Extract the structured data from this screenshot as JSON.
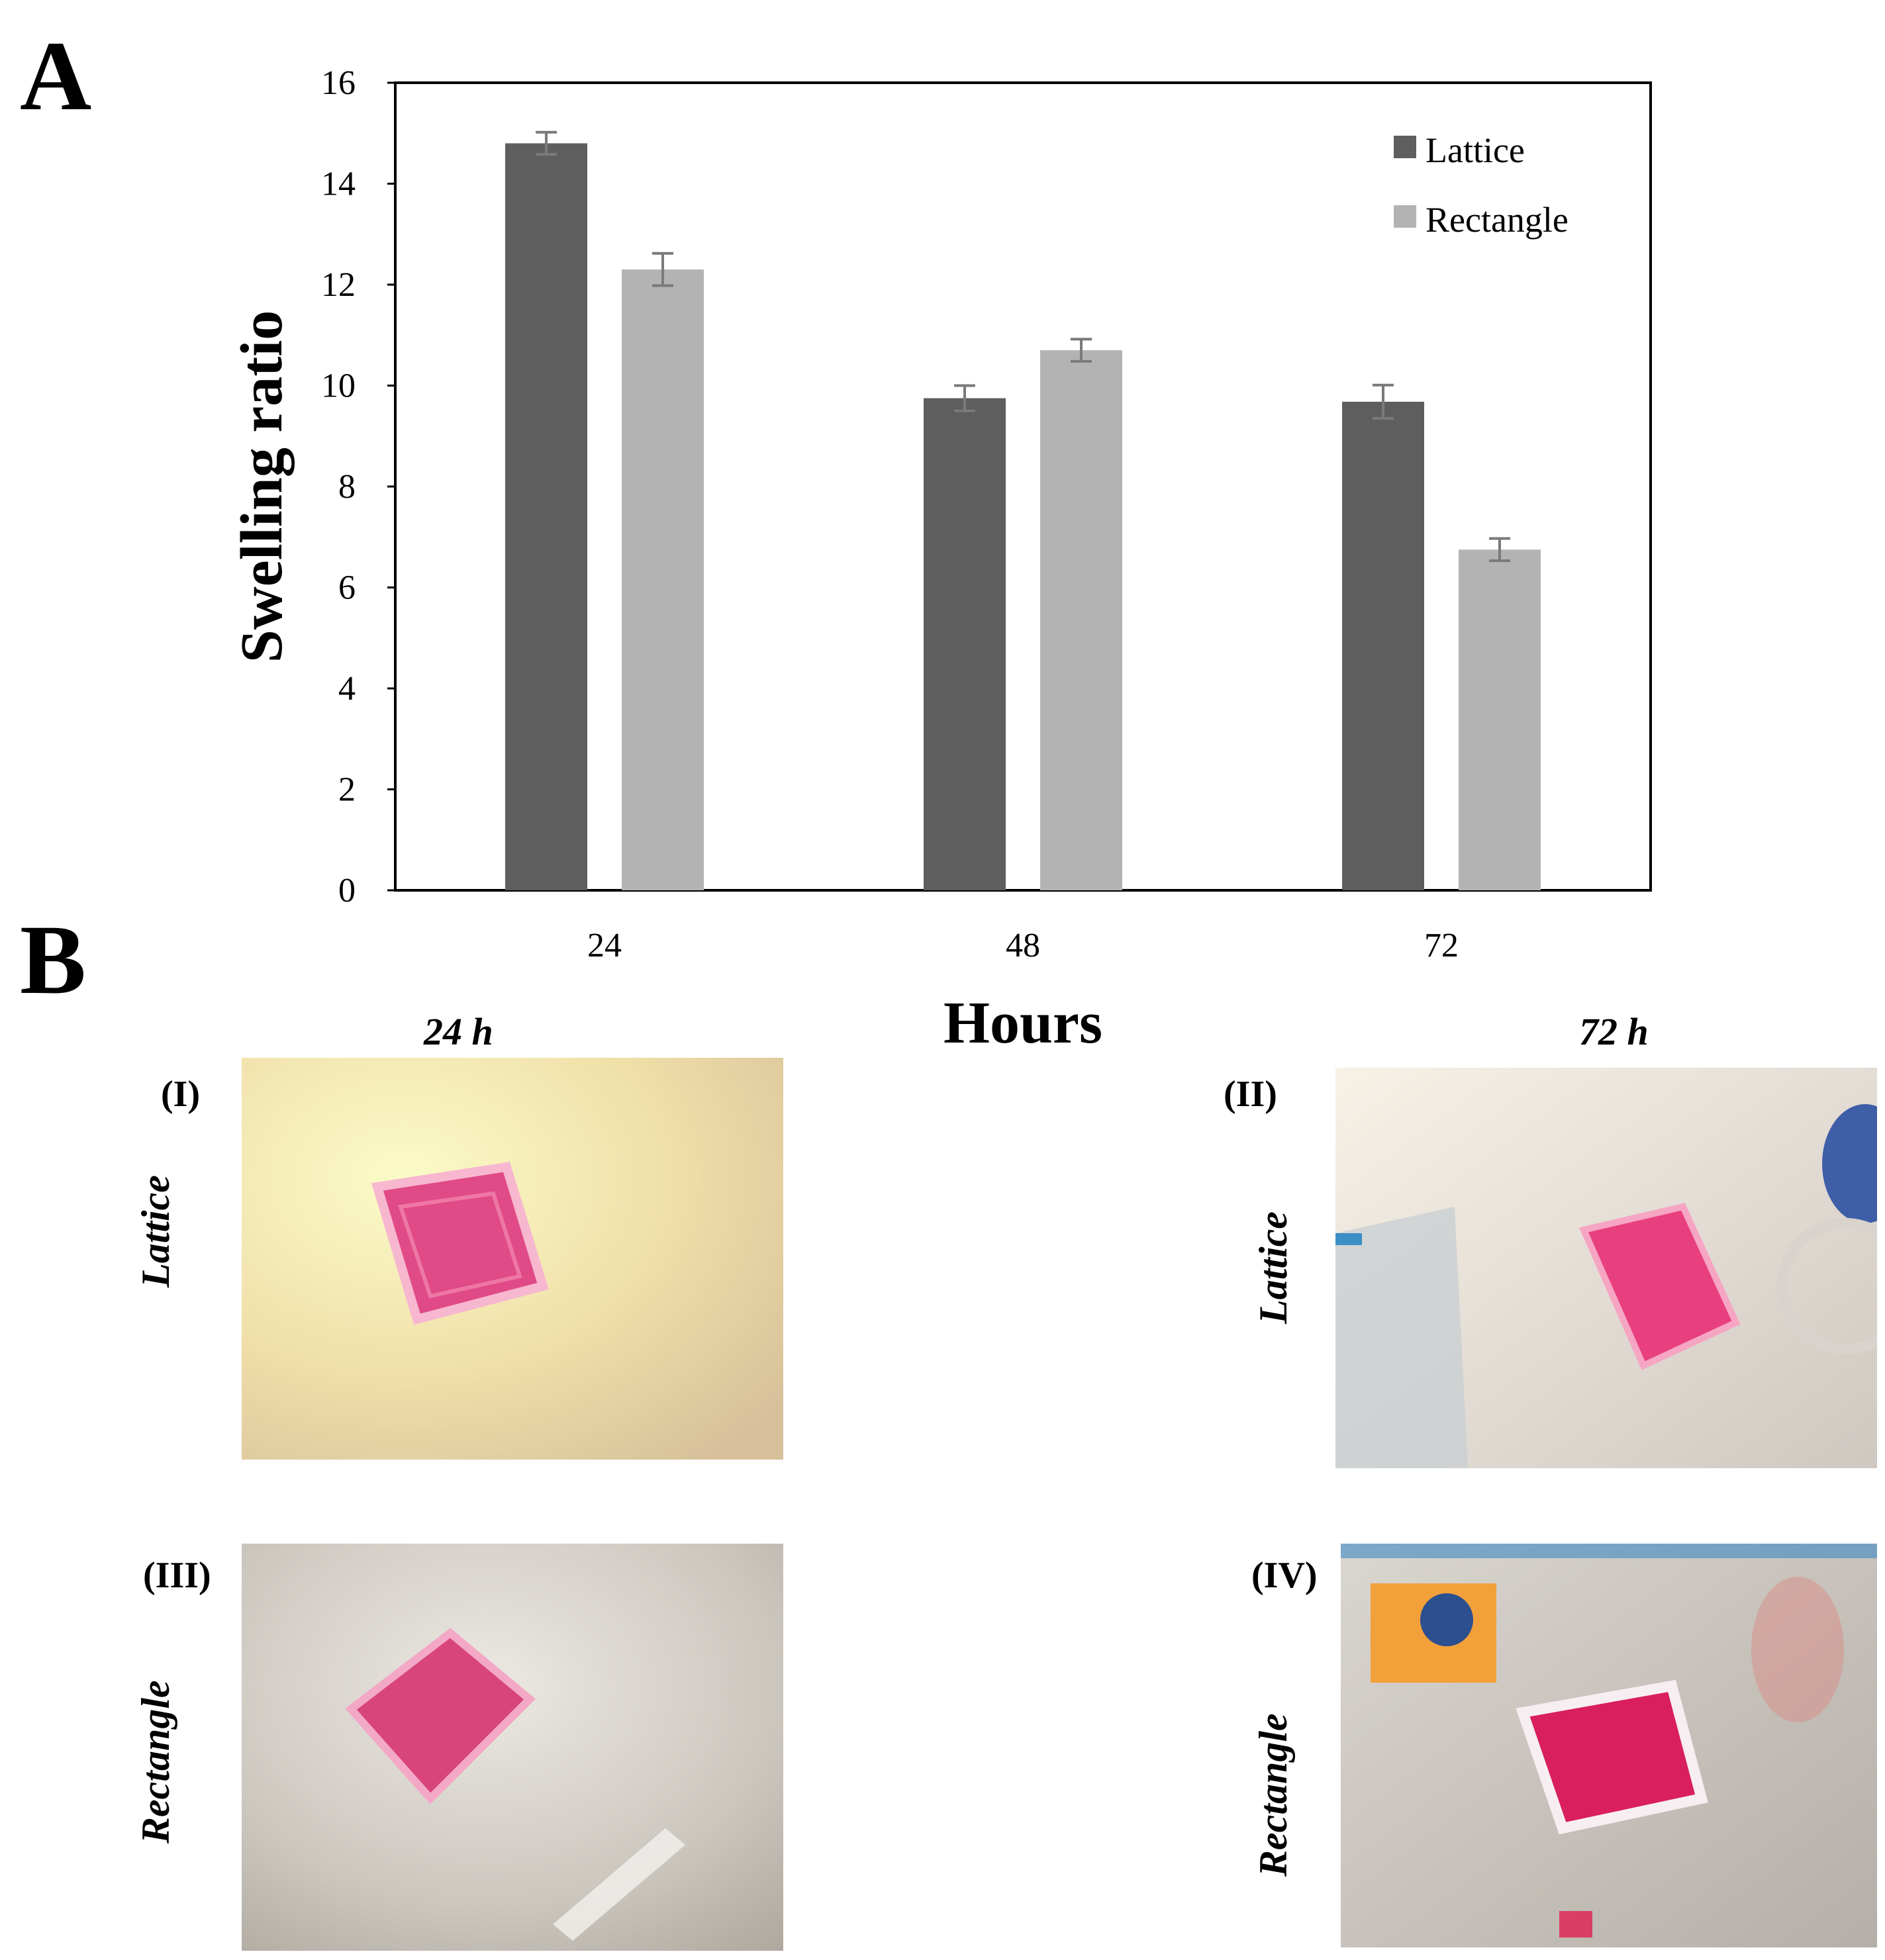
{
  "panels": {
    "a": "A",
    "b": "B"
  },
  "chart_data": {
    "type": "bar",
    "categories": [
      "24",
      "48",
      "72"
    ],
    "series": [
      {
        "name": "Lattice",
        "color": "#5e5e5e",
        "values": [
          14.8,
          9.75,
          9.68
        ],
        "errors": [
          0.22,
          0.25,
          0.33
        ]
      },
      {
        "name": "Rectangle",
        "color": "#b3b3b3",
        "values": [
          12.3,
          10.7,
          6.75
        ],
        "errors": [
          0.32,
          0.22,
          0.22
        ]
      }
    ],
    "xlabel": "Hours",
    "ylabel": "Swelling ratio",
    "ylim": [
      0,
      16
    ],
    "yticks": [
      0,
      2,
      4,
      6,
      8,
      10,
      12,
      14,
      16
    ],
    "legend_position": "top-right",
    "grid": false
  },
  "panel_b": {
    "columns": [
      "24 h",
      "72 h"
    ],
    "images": [
      {
        "roman": "(I)",
        "row_label": "Lattice",
        "background": "#f2e7a6",
        "sample_color": "#e04a86"
      },
      {
        "roman": "(II)",
        "row_label": "Lattice",
        "background": "#ece6df",
        "sample_color": "#e8407e"
      },
      {
        "roman": "(III)",
        "row_label": "Rectangle",
        "background": "#c9c3bb",
        "sample_color": "#d8457b"
      },
      {
        "roman": "(IV)",
        "row_label": "Rectangle",
        "background": "#cfcac3",
        "sample_color": "#d91f5d"
      }
    ]
  }
}
